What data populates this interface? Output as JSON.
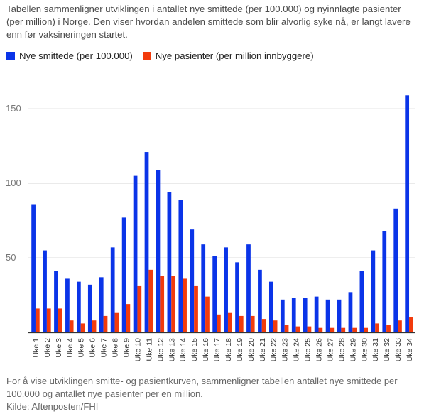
{
  "subtitle": "Tabellen sammenligner utviklingen i antallet nye smittede (per 100.000) og nyinnlagte pasienter (per million) i Norge. Den viser hvordan andelen smittede som blir alvorlig syke nå, er langt lavere enn før vaksineringen startet.",
  "note": "For å vise utviklingen smitte- og pasientkurven, sammenligner tabellen antallet nye smittede per 100.000 og antallet nye pasienter per en million.",
  "source": "Kilde: Aftenposten/FHI",
  "colors": {
    "blue": "#0a34e8",
    "orange": "#f23b0c",
    "axis": "#333333",
    "grid": "#dddddd"
  },
  "chart_data": {
    "type": "bar",
    "categories": [
      "Uke 1",
      "Uke 2",
      "Uke 3",
      "Uke 4",
      "Uke 5",
      "Uke 6",
      "Uke 7",
      "Uke 8",
      "Uke 9",
      "Uke 10",
      "Uke 11",
      "Uke 12",
      "Uke 13",
      "Uke 14",
      "Uke 15",
      "Uke 16",
      "Uke 17",
      "Uke 18",
      "Uke 19",
      "Uke 20",
      "Uke 21",
      "Uke 22",
      "Uke 23",
      "Uke 24",
      "Uke 25",
      "Uke 26",
      "Uke 27",
      "Uke 28",
      "Uke 29",
      "Uke 30",
      "Uke 31",
      "Uke 32",
      "Uke 33",
      "Uke 34"
    ],
    "series": [
      {
        "name": "Nye smittede (per 100.000)",
        "color": "#0a34e8",
        "values": [
          86,
          55,
          41,
          36,
          34,
          32,
          37,
          57,
          77,
          105,
          121,
          109,
          94,
          89,
          69,
          59,
          51,
          57,
          47,
          59,
          42,
          34,
          22,
          23,
          23,
          24,
          22,
          22,
          27,
          41,
          55,
          68,
          83,
          159
        ]
      },
      {
        "name": "Nye pasienter (per million innbyggere)",
        "color": "#f23b0c",
        "values": [
          16,
          16,
          16,
          8,
          6,
          8,
          11,
          13,
          19,
          31,
          42,
          38,
          38,
          36,
          31,
          24,
          12,
          13,
          11,
          11,
          9,
          8,
          5,
          4,
          4,
          3,
          3,
          3,
          3,
          3,
          6,
          5,
          8,
          10
        ]
      }
    ],
    "yticks": [
      50,
      100,
      150
    ],
    "ylim": [
      0,
      162
    ],
    "grid": true,
    "legend": "top-left"
  }
}
